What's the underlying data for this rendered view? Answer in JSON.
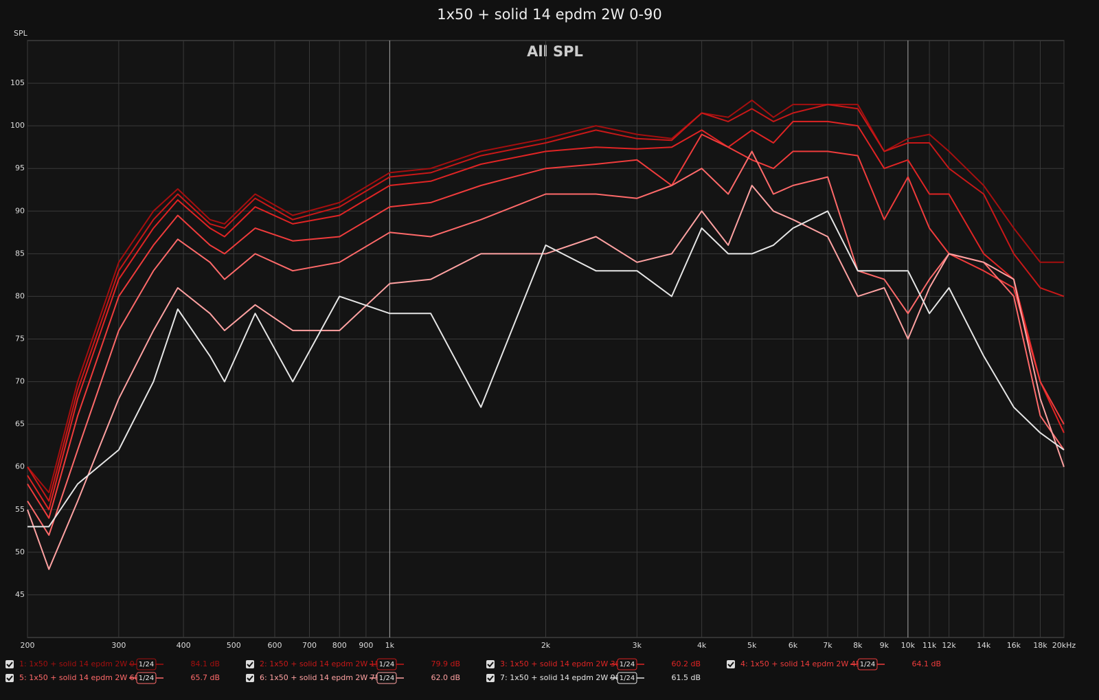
{
  "chart_data": {
    "type": "line",
    "title": "1x50 + solid 14 epdm 2W 0-90",
    "subtitle": "All SPL",
    "ylabel": "SPL",
    "xscale": "log",
    "grid": true,
    "xlim": [
      200,
      20000
    ],
    "ylim": [
      40,
      110
    ],
    "xticks": [
      200,
      300,
      400,
      500,
      600,
      700,
      800,
      900,
      {
        "value": 1000,
        "label": "1k"
      },
      {
        "value": 2000,
        "label": "2k"
      },
      {
        "value": 3000,
        "label": "3k"
      },
      {
        "value": 4000,
        "label": "4k"
      },
      {
        "value": 5000,
        "label": "5k"
      },
      {
        "value": 6000,
        "label": "6k"
      },
      {
        "value": 7000,
        "label": "7k"
      },
      {
        "value": 8000,
        "label": "8k"
      },
      {
        "value": 9000,
        "label": "9k"
      },
      {
        "value": 10000,
        "label": "10k"
      },
      {
        "value": 11000,
        "label": "11k"
      },
      {
        "value": 12000,
        "label": "12k"
      },
      {
        "value": 14000,
        "label": "14k"
      },
      {
        "value": 16000,
        "label": "16k"
      },
      {
        "value": 18000,
        "label": "18k"
      },
      {
        "value": 20000,
        "label": "20kHz"
      }
    ],
    "yticks": [
      45,
      50,
      55,
      60,
      65,
      70,
      75,
      80,
      85,
      90,
      95,
      100,
      105
    ],
    "x": [
      200,
      220,
      250,
      300,
      350,
      390,
      450,
      480,
      550,
      650,
      800,
      1000,
      1200,
      1500,
      2000,
      2500,
      3000,
      3500,
      4000,
      4500,
      5000,
      5500,
      6000,
      7000,
      8000,
      9000,
      10000,
      11000,
      12000,
      14000,
      16000,
      18000,
      20000
    ],
    "series": [
      {
        "name": "1: 1x50 + solid 14 epdm 2W 0",
        "smoothing": "1/24",
        "readout": "84.1 dB",
        "color": "#a50f0f",
        "values": [
          60,
          57,
          70,
          84,
          90,
          92.6,
          89,
          88.5,
          92,
          89.5,
          91,
          94.5,
          95,
          97,
          98.5,
          100,
          99,
          98.5,
          101.5,
          101,
          103,
          101,
          102.5,
          102.5,
          102.5,
          97,
          98.5,
          99,
          97,
          93,
          88,
          84,
          84
        ]
      },
      {
        "name": "2: 1x50 + solid 14 epdm 2W 15",
        "smoothing": "1/24",
        "readout": "79.9 dB",
        "color": "#c81818",
        "values": [
          60,
          56,
          69,
          83,
          89,
          92,
          88.5,
          88,
          91.5,
          89,
          90.5,
          94,
          94.5,
          96.5,
          98,
          99.5,
          98.5,
          98.3,
          101.5,
          100.5,
          102,
          100.5,
          101.5,
          102.5,
          102,
          97,
          98,
          98,
          95,
          92,
          85,
          81,
          80
        ]
      },
      {
        "name": "3: 1x50 + solid 14 epdm 2W 30",
        "smoothing": "1/24",
        "readout": "60.2 dB",
        "color": "#e02424",
        "values": [
          59,
          55,
          68,
          82,
          88,
          91.3,
          88,
          87,
          90.5,
          88.5,
          89.5,
          93,
          93.5,
          95.5,
          97,
          97.5,
          97.3,
          97.5,
          99.5,
          97.5,
          99.5,
          98,
          100.5,
          100.5,
          100,
          95,
          96,
          92,
          92,
          85,
          82,
          70,
          64
        ]
      },
      {
        "name": "4: 1x50 + solid 14 epdm 2W 45",
        "smoothing": "1/24",
        "readout": "64.1 dB",
        "color": "#f03c3c",
        "values": [
          58,
          54,
          66,
          80,
          86,
          89.5,
          86,
          85,
          88,
          86.5,
          87,
          90.5,
          91,
          93,
          95,
          95.5,
          96,
          93,
          99,
          97.5,
          96,
          95,
          97,
          97,
          96.5,
          89,
          94,
          88,
          85,
          83,
          81,
          70,
          65
        ]
      },
      {
        "name": "5: 1x50 + solid 14 epdm 2W 60",
        "smoothing": "1/24",
        "readout": "65.7 dB",
        "color": "#ff6a6a",
        "values": [
          56,
          52,
          62,
          76,
          83,
          86.7,
          84,
          82,
          85,
          83,
          84,
          87.5,
          87,
          89,
          92,
          92,
          91.5,
          93,
          95,
          92,
          97,
          92,
          93,
          94,
          83,
          82,
          78,
          82,
          85,
          84,
          80,
          66,
          62
        ]
      },
      {
        "name": "6: 1x50 + solid 14 epdm 2W 75",
        "smoothing": "1/24",
        "readout": "62.0 dB",
        "color": "#ffa2a2",
        "values": [
          55,
          48,
          56,
          68,
          76,
          81,
          78,
          76,
          79,
          76,
          76,
          81.5,
          82,
          85,
          85,
          87,
          84,
          85,
          90,
          86,
          93,
          90,
          89,
          87,
          80,
          81,
          75,
          81,
          85,
          84,
          82,
          68,
          60
        ]
      },
      {
        "name": "7: 1x50 + solid 14 epdm 2W 90",
        "smoothing": "1/24",
        "readout": "61.5 dB",
        "color": "#e6e6e6",
        "values": [
          53,
          53,
          58,
          62,
          70,
          78.5,
          73,
          70,
          78,
          70,
          80,
          78,
          78,
          67,
          86,
          83,
          83,
          80,
          88,
          85,
          85,
          86,
          88,
          90,
          83,
          83,
          83,
          78,
          81,
          73,
          67,
          64,
          62
        ]
      }
    ]
  }
}
